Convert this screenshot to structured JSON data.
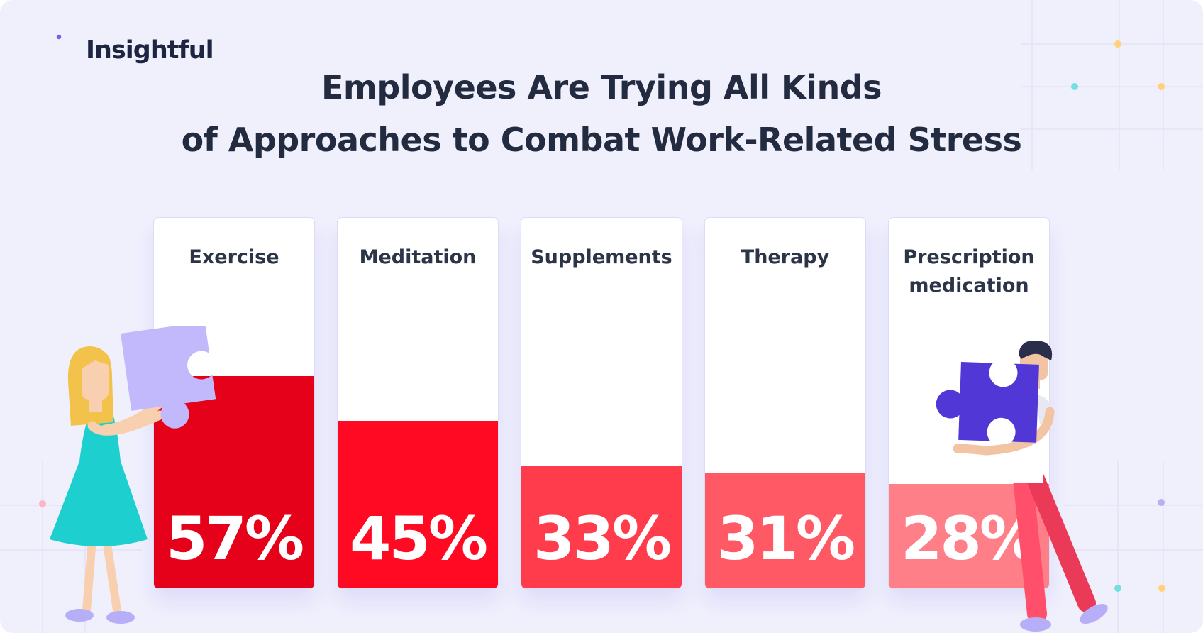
{
  "brand": {
    "name": "Insightful",
    "accent": "#6b4fd8"
  },
  "title_lines": [
    "Employees Are Trying All Kinds",
    "of Approaches to Combat Work-Related Stress"
  ],
  "chart_data": {
    "type": "bar",
    "title": "Employees Are Trying All Kinds of Approaches to Combat Work-Related Stress",
    "categories": [
      "Exercise",
      "Meditation",
      "Supplements",
      "Therapy",
      "Prescription medication"
    ],
    "category_lines": [
      [
        "Exercise"
      ],
      [
        "Meditation"
      ],
      [
        "Supplements"
      ],
      [
        "Therapy"
      ],
      [
        "Prescription",
        "medication"
      ]
    ],
    "values": [
      57,
      45,
      33,
      31,
      28
    ],
    "value_labels": [
      "57%",
      "45%",
      "33%",
      "31%",
      "28%"
    ],
    "unit": "%",
    "ylim": [
      0,
      100
    ],
    "colors": [
      "#e5011a",
      "#ff0a22",
      "#ff3c4b",
      "#ff5965",
      "#ff7f88"
    ],
    "grid": false,
    "legend": "none"
  },
  "icons": [
    "sound-wave-logo-icon",
    "puzzle-piece-icon"
  ]
}
